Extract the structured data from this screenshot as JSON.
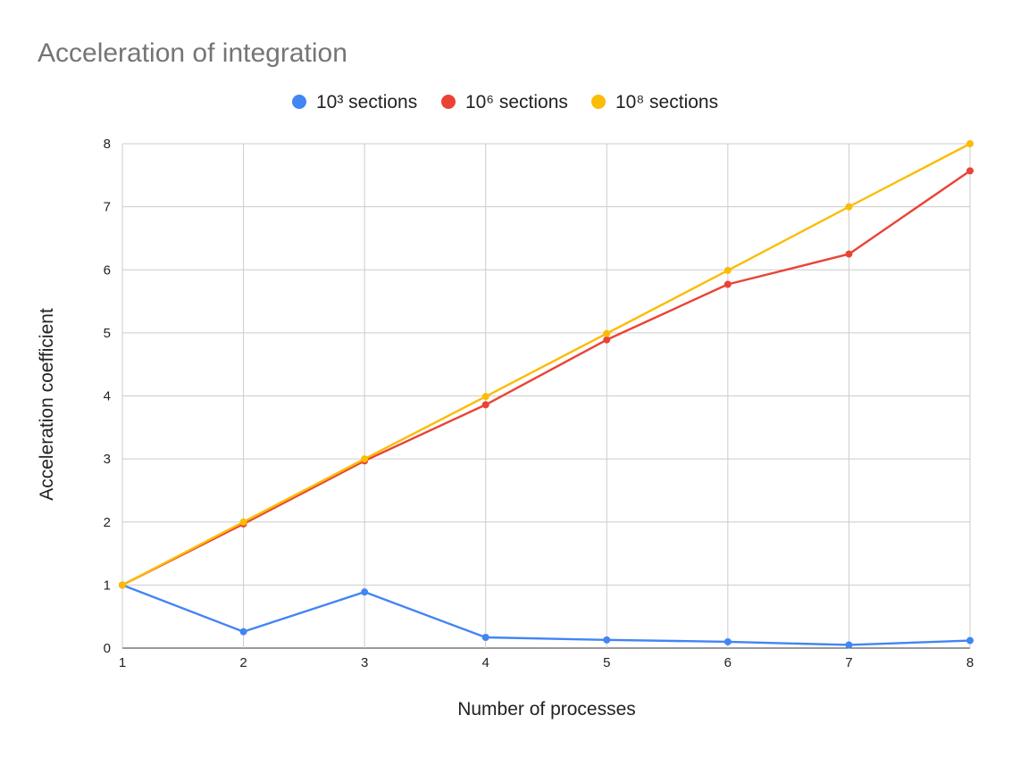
{
  "chart_data": {
    "type": "line",
    "title": "Acceleration of integration",
    "xlabel": "Number of processes",
    "ylabel": "Acceleration coefficient",
    "x": [
      1,
      2,
      3,
      4,
      5,
      6,
      7,
      8
    ],
    "xlim": [
      1,
      8
    ],
    "ylim": [
      0,
      8
    ],
    "x_ticks": [
      "1",
      "2",
      "3",
      "4",
      "5",
      "6",
      "7",
      "8"
    ],
    "y_ticks": [
      "0",
      "1",
      "2",
      "3",
      "4",
      "5",
      "6",
      "7",
      "8"
    ],
    "grid": true,
    "legend_position": "top",
    "series": [
      {
        "name": "10³ sections",
        "color": "#4285f4",
        "values": [
          1.0,
          0.26,
          0.89,
          0.17,
          0.13,
          0.1,
          0.05,
          0.12
        ]
      },
      {
        "name": "10⁶ sections",
        "color": "#ea4335",
        "values": [
          1.0,
          1.97,
          2.97,
          3.86,
          4.89,
          5.77,
          6.25,
          7.57
        ]
      },
      {
        "name": "10⁸ sections",
        "color": "#fbbc04",
        "values": [
          1.0,
          2.0,
          3.0,
          3.99,
          4.99,
          5.99,
          7.0,
          8.0
        ]
      }
    ]
  }
}
